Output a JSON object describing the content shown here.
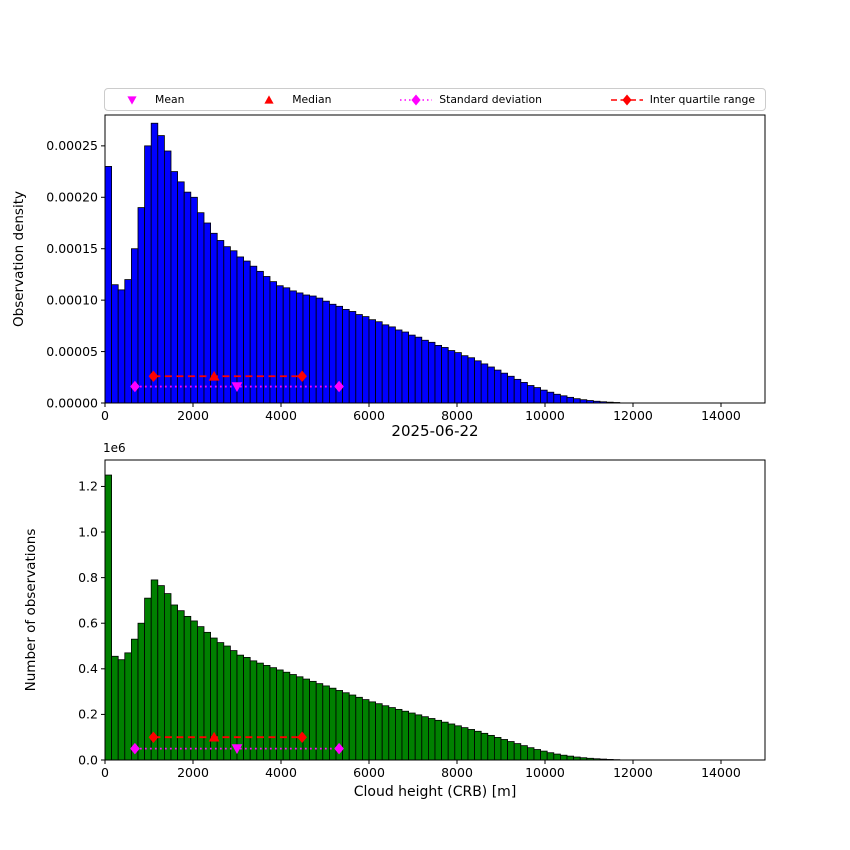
{
  "figure": {
    "background": "#ffffff"
  },
  "colors": {
    "edge": "#000000",
    "mean": "#ff00ff",
    "median": "#ff0000",
    "std": "#ff00ff",
    "iqr": "#ff0000"
  },
  "legend": {
    "items": [
      {
        "label": "Mean",
        "marker": "triangle-down",
        "color": "#ff00ff",
        "line": "none",
        "icon": "mean-marker-icon"
      },
      {
        "label": "Median",
        "marker": "triangle-up",
        "color": "#ff0000",
        "line": "none",
        "icon": "median-marker-icon"
      },
      {
        "label": "Standard deviation",
        "marker": "diamond",
        "color": "#ff00ff",
        "line": "dotted",
        "icon": "std-deviation-icon"
      },
      {
        "label": "Inter quartile range",
        "marker": "diamond",
        "color": "#ff0000",
        "line": "dashed",
        "icon": "iqr-icon"
      }
    ]
  },
  "chart_data": [
    {
      "type": "bar",
      "title": "",
      "xlabel": "",
      "ylabel": "Observation density",
      "bar_color": "#0000ff",
      "edge_color": "#000000",
      "bin_start": 0,
      "bin_width": 150,
      "xlim": [
        0,
        15000
      ],
      "ylim": [
        0,
        0.00028
      ],
      "x_ticks": [
        0,
        2000,
        4000,
        6000,
        8000,
        10000,
        12000,
        14000
      ],
      "x_tick_labels": [
        "0",
        "2000",
        "4000",
        "6000",
        "8000",
        "10000",
        "12000",
        "14000"
      ],
      "y_ticks": [
        0,
        5e-05,
        0.0001,
        0.00015,
        0.0002,
        0.00025
      ],
      "y_tick_labels": [
        "0.00000",
        "0.00005",
        "0.00010",
        "0.00015",
        "0.00020",
        "0.00025"
      ],
      "values": [
        0.00023,
        0.000115,
        0.00011,
        0.00012,
        0.00015,
        0.00019,
        0.00025,
        0.000272,
        0.00026,
        0.000245,
        0.000225,
        0.000215,
        0.000205,
        0.0002,
        0.000185,
        0.000175,
        0.000165,
        0.000158,
        0.000152,
        0.000148,
        0.000142,
        0.000138,
        0.000133,
        0.000128,
        0.000123,
        0.000118,
        0.000114,
        0.000112,
        0.000109,
        0.000107,
        0.000105,
        0.000104,
        0.000102,
        9.9e-05,
        9.6e-05,
        9.4e-05,
        9.1e-05,
        8.9e-05,
        8.6e-05,
        8.4e-05,
        8.1e-05,
        7.9e-05,
        7.6e-05,
        7.4e-05,
        7.1e-05,
        6.9e-05,
        6.6e-05,
        6.4e-05,
        6.1e-05,
        5.9e-05,
        5.6e-05,
        5.4e-05,
        5.1e-05,
        4.9e-05,
        4.6e-05,
        4.4e-05,
        4.1e-05,
        3.8e-05,
        3.5e-05,
        3.2e-05,
        2.9e-05,
        2.6e-05,
        2.3e-05,
        2e-05,
        1.7e-05,
        1.5e-05,
        1.25e-05,
        1.05e-05,
        8.5e-06,
        7e-06,
        5.5e-06,
        4.2e-06,
        3.2e-06,
        2.4e-06,
        1.7e-06,
        1.2e-06,
        8e-07,
        5e-07
      ],
      "stats": {
        "mean": 3000,
        "median": 2480,
        "q1": 1100,
        "q3": 4480,
        "std_low": 680,
        "std_high": 5320,
        "iqr_line_value": 2.6e-05,
        "std_line_value": 1.6e-05
      }
    },
    {
      "type": "bar",
      "title": "2025-06-22",
      "xlabel": "Cloud height (CRB) [m]",
      "ylabel": "Number of observations",
      "y_offset_label": "1e6",
      "bar_color": "#008000",
      "edge_color": "#000000",
      "bin_start": 0,
      "bin_width": 150,
      "xlim": [
        0,
        15000
      ],
      "ylim": [
        0,
        1316000
      ],
      "x_ticks": [
        0,
        2000,
        4000,
        6000,
        8000,
        10000,
        12000,
        14000
      ],
      "x_tick_labels": [
        "0",
        "2000",
        "4000",
        "6000",
        "8000",
        "10000",
        "12000",
        "14000"
      ],
      "y_ticks": [
        0,
        200000,
        400000,
        600000,
        800000,
        1000000,
        1200000
      ],
      "y_tick_labels": [
        "0.0",
        "0.2",
        "0.4",
        "0.6",
        "0.8",
        "1.0",
        "1.2"
      ],
      "values": [
        1250000,
        455000,
        440000,
        470000,
        530000,
        600000,
        710000,
        790000,
        765000,
        730000,
        680000,
        655000,
        630000,
        610000,
        585000,
        560000,
        535000,
        515000,
        500000,
        480000,
        460000,
        450000,
        435000,
        425000,
        415000,
        405000,
        395000,
        385000,
        375000,
        365000,
        355000,
        345000,
        335000,
        325000,
        315000,
        305000,
        295000,
        285000,
        275000,
        265000,
        255000,
        247000,
        238000,
        230000,
        222000,
        214000,
        206000,
        198000,
        190000,
        182000,
        174000,
        166000,
        158000,
        150000,
        142000,
        134000,
        126000,
        117000,
        108000,
        99000,
        90000,
        81000,
        72000,
        63000,
        54000,
        46000,
        39000,
        32000,
        26000,
        21000,
        17000,
        13000,
        10000,
        7500,
        5500,
        4000,
        2500,
        1500
      ],
      "stats": {
        "mean": 3000,
        "median": 2480,
        "q1": 1100,
        "q3": 4480,
        "std_low": 680,
        "std_high": 5320,
        "iqr_line_value": 100000,
        "std_line_value": 50000
      }
    }
  ]
}
